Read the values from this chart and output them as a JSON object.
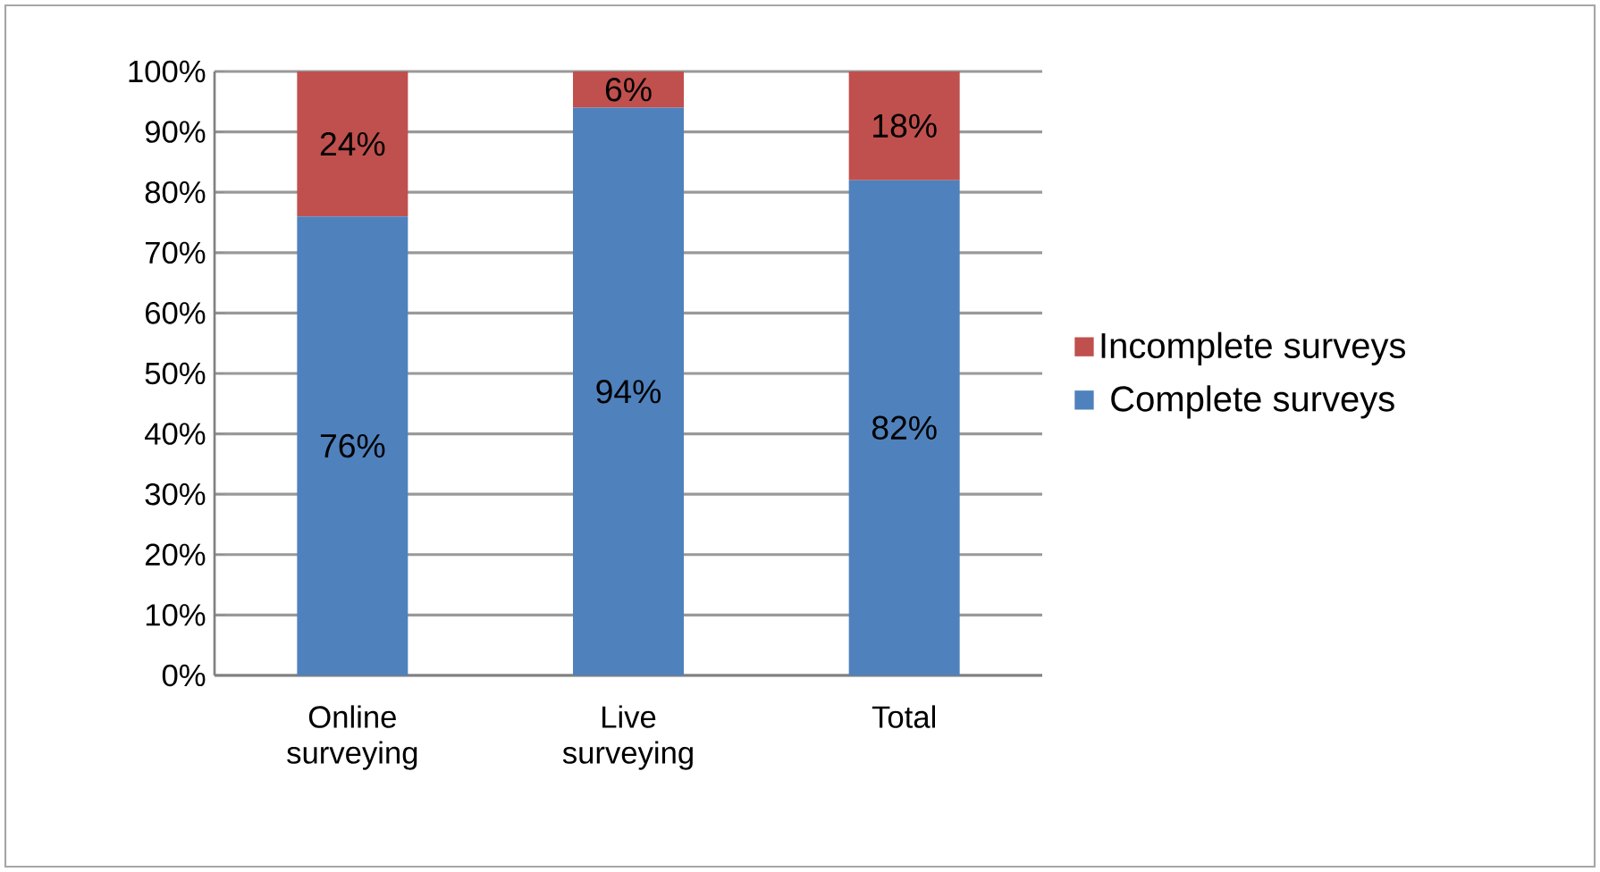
{
  "chart_data": {
    "type": "bar",
    "stacked": true,
    "categories": [
      "Online surveying",
      "Live surveying",
      "Total"
    ],
    "series": [
      {
        "name": "Complete surveys",
        "color": "#4f81bd",
        "values": [
          76,
          94,
          82
        ],
        "value_labels": [
          "76%",
          "94%",
          "82%"
        ]
      },
      {
        "name": "Incomplete surveys",
        "color": "#c0504d",
        "values": [
          24,
          6,
          18
        ],
        "value_labels": [
          "24%",
          "6%",
          "18%"
        ]
      }
    ],
    "ylim": [
      0,
      100
    ],
    "yticks": [
      {
        "value": 0,
        "label": "0%"
      },
      {
        "value": 10,
        "label": "10%"
      },
      {
        "value": 20,
        "label": "20%"
      },
      {
        "value": 30,
        "label": "30%"
      },
      {
        "value": 40,
        "label": "40%"
      },
      {
        "value": 50,
        "label": "50%"
      },
      {
        "value": 60,
        "label": "60%"
      },
      {
        "value": 70,
        "label": "70%"
      },
      {
        "value": 80,
        "label": "80%"
      },
      {
        "value": 90,
        "label": "90%"
      },
      {
        "value": 100,
        "label": "100%"
      }
    ],
    "grid": "y",
    "legend": "right"
  }
}
